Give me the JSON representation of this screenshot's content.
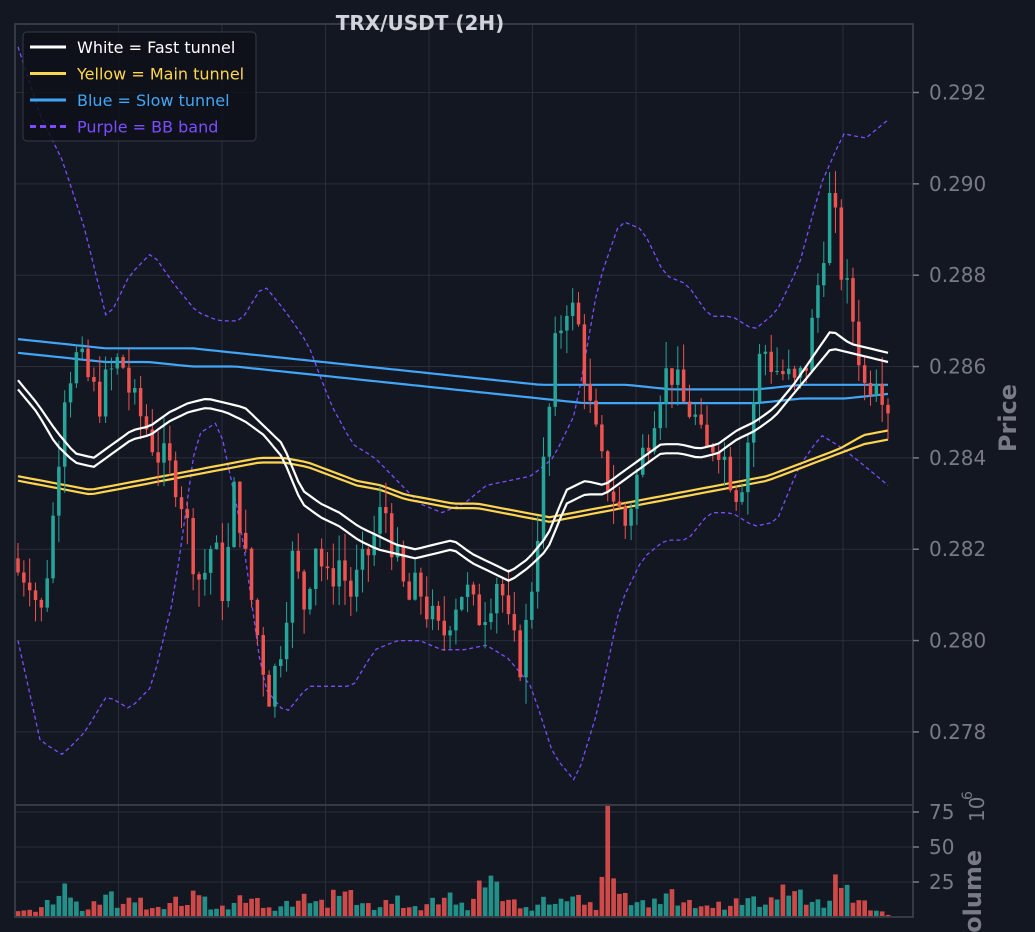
{
  "chart_data": {
    "type": "candlestick",
    "title": "TRX/USDT (2H)",
    "colors": {
      "background": "#131722",
      "grid": "#2a2e39",
      "axis": "#787b86",
      "up": "#26a69a",
      "down": "#ef5350",
      "fast_tunnel": "#ffffff",
      "main_tunnel": "#ffd54f",
      "slow_tunnel": "#42a5f5",
      "bb_band": "#7c4dff"
    },
    "legend": {
      "placement": "top-left",
      "items": [
        {
          "key": "fast",
          "label": "White = Fast tunnel",
          "color": "#ffffff",
          "dashed": false
        },
        {
          "key": "main",
          "label": "Yellow = Main tunnel",
          "color": "#ffd54f",
          "dashed": false
        },
        {
          "key": "slow",
          "label": "Blue = Slow tunnel",
          "color": "#42a5f5",
          "dashed": false
        },
        {
          "key": "bb",
          "label": "Purple = BB band",
          "color": "#7c4dff",
          "dashed": true
        }
      ]
    },
    "price_panel": {
      "ylabel": "Price",
      "ylim": [
        0.2764,
        0.2935
      ],
      "yticks": [
        "0.278",
        "0.280",
        "0.282",
        "0.284",
        "0.286",
        "0.288",
        "0.290",
        "0.292"
      ],
      "grid": true
    },
    "volume_panel": {
      "ylabel": "Volume",
      "exponent_label": "10",
      "exponent_sup": "6",
      "ylim": [
        0,
        80
      ],
      "yticks": [
        "25",
        "50",
        "75"
      ],
      "grid": true
    },
    "candles": {
      "count": 150,
      "close_path": [
        0.2815,
        0.2815,
        0.2805,
        0.2825,
        0.2855,
        0.2862,
        0.2858,
        0.2852,
        0.2858,
        0.2862,
        0.2852,
        0.2848,
        0.2842,
        0.2838,
        0.2835,
        0.2822,
        0.2812,
        0.2822,
        0.281,
        0.2835,
        0.2815,
        0.28,
        0.2788,
        0.28,
        0.2818,
        0.2808,
        0.2822,
        0.2812,
        0.2818,
        0.281,
        0.2815,
        0.2822,
        0.283,
        0.2818,
        0.2808,
        0.2812,
        0.2805,
        0.28,
        0.2808,
        0.2812,
        0.2805,
        0.2808,
        0.2815,
        0.28,
        0.2795,
        0.2815,
        0.284,
        0.2865,
        0.2875,
        0.2868,
        0.285,
        0.2838,
        0.2832,
        0.2825,
        0.2835,
        0.2845,
        0.2855,
        0.286,
        0.2852,
        0.285,
        0.284,
        0.2845,
        0.2838,
        0.2832,
        0.2848,
        0.2865,
        0.286,
        0.2858,
        0.2855,
        0.2862,
        0.288,
        0.2898,
        0.288,
        0.287,
        0.2855,
        0.286,
        0.2852
      ],
      "open_first": 0.2818,
      "open_path_note": "",
      "last_close": 0.2852
    },
    "volume_path": [
      7,
      4,
      6,
      10,
      14,
      20,
      8,
      6,
      12,
      18,
      8,
      10,
      14,
      8,
      6,
      10,
      12,
      8,
      20,
      10,
      6,
      8,
      12,
      14,
      10,
      6,
      8,
      10,
      12,
      14,
      10,
      8,
      26,
      18,
      12,
      8,
      6,
      10,
      14,
      8,
      6,
      10,
      12,
      14,
      10,
      8,
      20,
      36,
      18,
      12,
      8,
      6,
      10,
      14,
      8,
      16,
      12,
      10,
      8,
      70,
      18,
      12,
      10,
      8,
      14,
      20,
      12,
      10,
      8,
      6,
      10,
      8,
      12,
      14,
      10,
      8,
      16,
      26,
      18,
      12,
      10,
      8,
      28,
      20,
      14,
      8,
      4,
      2
    ],
    "fast_tunnel": {
      "upper": [
        0.2857,
        0.2852,
        0.2846,
        0.2841,
        0.284,
        0.2843,
        0.2846,
        0.2847,
        0.285,
        0.2852,
        0.2853,
        0.2852,
        0.2851,
        0.2847,
        0.2843,
        0.2833,
        0.283,
        0.2828,
        0.2825,
        0.2823,
        0.2821,
        0.282,
        0.2821,
        0.2822,
        0.2819,
        0.2817,
        0.2815,
        0.2818,
        0.2823,
        0.2833,
        0.2835,
        0.2834,
        0.2837,
        0.284,
        0.2843,
        0.2843,
        0.2842,
        0.2843,
        0.2846,
        0.2848,
        0.2851,
        0.2856,
        0.2862,
        0.2868,
        0.2865,
        0.2864,
        0.2863
      ],
      "lower": [
        0.2855,
        0.285,
        0.2843,
        0.2839,
        0.2838,
        0.2841,
        0.2844,
        0.2845,
        0.2848,
        0.285,
        0.2851,
        0.285,
        0.2848,
        0.2845,
        0.284,
        0.283,
        0.2827,
        0.2825,
        0.2822,
        0.282,
        0.2819,
        0.2818,
        0.2819,
        0.282,
        0.2817,
        0.2815,
        0.2813,
        0.2816,
        0.282,
        0.283,
        0.2832,
        0.2832,
        0.2835,
        0.2838,
        0.2841,
        0.2841,
        0.284,
        0.2841,
        0.2844,
        0.2846,
        0.2849,
        0.2854,
        0.2859,
        0.2864,
        0.2863,
        0.2862,
        0.2861
      ]
    },
    "main_tunnel": {
      "upper": [
        0.2836,
        0.2835,
        0.2834,
        0.2833,
        0.2834,
        0.2835,
        0.2836,
        0.2837,
        0.2838,
        0.2839,
        0.284,
        0.284,
        0.2839,
        0.2837,
        0.2835,
        0.2834,
        0.2832,
        0.2831,
        0.283,
        0.283,
        0.2829,
        0.2828,
        0.2827,
        0.2828,
        0.2829,
        0.283,
        0.2831,
        0.2832,
        0.2833,
        0.2834,
        0.2835,
        0.2836,
        0.2838,
        0.284,
        0.2842,
        0.2845,
        0.2846
      ],
      "lower": [
        0.2835,
        0.2834,
        0.2833,
        0.2832,
        0.2833,
        0.2834,
        0.2835,
        0.2836,
        0.2837,
        0.2838,
        0.2839,
        0.2839,
        0.2838,
        0.2836,
        0.2834,
        0.2833,
        0.2831,
        0.283,
        0.2829,
        0.2829,
        0.2828,
        0.2827,
        0.2826,
        0.2827,
        0.2828,
        0.2829,
        0.283,
        0.2831,
        0.2832,
        0.2833,
        0.2834,
        0.2835,
        0.2837,
        0.2839,
        0.2841,
        0.2843,
        0.2844
      ]
    },
    "slow_tunnel": {
      "upper": [
        0.2866,
        0.2865,
        0.2864,
        0.2864,
        0.2864,
        0.2863,
        0.2862,
        0.2861,
        0.286,
        0.2859,
        0.2858,
        0.2857,
        0.2856,
        0.2856,
        0.2856,
        0.2855,
        0.2855,
        0.2855,
        0.2856,
        0.2856,
        0.2856
      ],
      "lower": [
        0.2863,
        0.2862,
        0.2861,
        0.2861,
        0.286,
        0.286,
        0.2859,
        0.2858,
        0.2857,
        0.2856,
        0.2855,
        0.2854,
        0.2853,
        0.2852,
        0.2852,
        0.2852,
        0.2852,
        0.2852,
        0.2853,
        0.2853,
        0.2854
      ]
    },
    "bb_band": {
      "upper": [
        0.293,
        0.2915,
        0.2905,
        0.289,
        0.287,
        0.288,
        0.2885,
        0.2878,
        0.2872,
        0.287,
        0.287,
        0.2878,
        0.2872,
        0.2865,
        0.2852,
        0.2843,
        0.284,
        0.2835,
        0.283,
        0.2828,
        0.283,
        0.2834,
        0.2835,
        0.2836,
        0.284,
        0.285,
        0.2878,
        0.2892,
        0.289,
        0.288,
        0.2878,
        0.2871,
        0.2871,
        0.2868,
        0.2872,
        0.2882,
        0.29,
        0.2911,
        0.291,
        0.2914
      ],
      "lower": [
        0.28,
        0.2778,
        0.2775,
        0.278,
        0.2788,
        0.2785,
        0.279,
        0.281,
        0.2845,
        0.2848,
        0.2825,
        0.279,
        0.2784,
        0.279,
        0.279,
        0.279,
        0.2798,
        0.28,
        0.28,
        0.2798,
        0.2798,
        0.2799,
        0.2796,
        0.279,
        0.2775,
        0.2769,
        0.2785,
        0.2808,
        0.2818,
        0.2822,
        0.2822,
        0.2828,
        0.2828,
        0.2825,
        0.2826,
        0.2838,
        0.2845,
        0.2842,
        0.2838,
        0.2834
      ]
    }
  }
}
